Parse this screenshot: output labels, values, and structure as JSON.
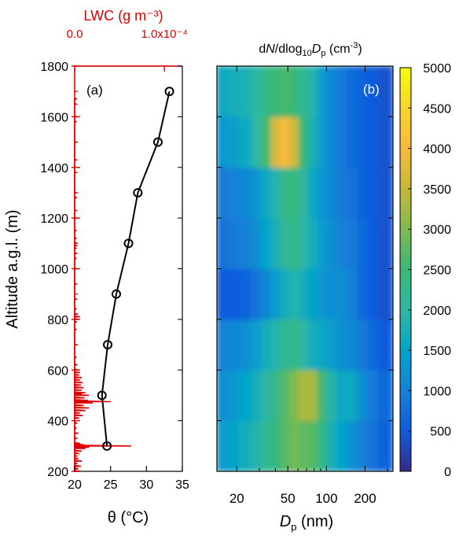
{
  "chart_data": [
    {
      "panel_label": "(a)",
      "type": "line",
      "title": "",
      "ylabel": "Altitude a.g.l. (m)",
      "ylim": [
        200,
        1800
      ],
      "yticks": [
        200,
        400,
        600,
        800,
        1000,
        1200,
        1400,
        1600,
        1800
      ],
      "xlabel_bottom": "θ (°C)",
      "xlim_bottom": [
        20,
        35
      ],
      "xticks_bottom": [
        20,
        25,
        30,
        35
      ],
      "xlabel_top": "LWC (g m⁻³)",
      "xlim_top": [
        0,
        0.00012
      ],
      "xticks_top": [
        {
          "value": 0,
          "label": "0.0"
        },
        {
          "value": 0.0001,
          "label": "1.0x10⁻⁴"
        }
      ],
      "top_axis_color": "#e00000",
      "series": [
        {
          "name": "",
          "color": "#000000",
          "marker": "open-circle",
          "x": [
            24.5,
            23.8,
            24.6,
            25.8,
            27.5,
            28.8,
            31.6,
            33.2
          ],
          "y": [
            300,
            500,
            700,
            900,
            1100,
            1300,
            1500,
            1700
          ]
        },
        {
          "name": "",
          "color": "#e00000",
          "axis": "top",
          "y_step_m": 5,
          "lwc": [
            [
              200,
              6e-06
            ],
            [
              210,
              4e-06
            ],
            [
              220,
              7e-06
            ],
            [
              230,
              3e-06
            ],
            [
              240,
              8e-06
            ],
            [
              250,
              4e-06
            ],
            [
              260,
              3e-06
            ],
            [
              270,
              5e-06
            ],
            [
              280,
              8e-06
            ],
            [
              290,
              1.2e-05
            ],
            [
              295,
              1.6e-05
            ],
            [
              300,
              6.3e-05
            ],
            [
              305,
              1e-05
            ],
            [
              310,
              6e-06
            ],
            [
              330,
              3e-06
            ],
            [
              350,
              4e-06
            ],
            [
              370,
              2e-06
            ],
            [
              390,
              3e-06
            ],
            [
              410,
              5e-06
            ],
            [
              420,
              9e-06
            ],
            [
              430,
              6e-06
            ],
            [
              440,
              1.2e-05
            ],
            [
              450,
              1.6e-05
            ],
            [
              460,
              1e-05
            ],
            [
              470,
              2e-05
            ],
            [
              475,
              4e-05
            ],
            [
              480,
              1.5e-05
            ],
            [
              490,
              1.1e-05
            ],
            [
              500,
              1.6e-05
            ],
            [
              505,
              8e-06
            ],
            [
              510,
              1.2e-05
            ],
            [
              520,
              8e-06
            ],
            [
              530,
              1e-05
            ],
            [
              540,
              7e-06
            ],
            [
              550,
              9e-06
            ],
            [
              560,
              6e-06
            ],
            [
              570,
              8e-06
            ],
            [
              580,
              5e-06
            ],
            [
              590,
              6e-06
            ],
            [
              600,
              4e-06
            ],
            [
              620,
              3e-06
            ],
            [
              650,
              2e-06
            ],
            [
              700,
              1.5e-06
            ],
            [
              760,
              2e-06
            ],
            [
              790,
              2.5e-06
            ],
            [
              800,
              3.5e-06
            ],
            [
              810,
              6e-06
            ],
            [
              820,
              3.5e-06
            ],
            [
              840,
              2e-06
            ],
            [
              880,
              1.5e-06
            ],
            [
              940,
              1.5e-06
            ],
            [
              1000,
              1.5e-06
            ],
            [
              1040,
              2e-06
            ],
            [
              1060,
              3e-06
            ],
            [
              1080,
              2e-06
            ],
            [
              1090,
              3e-06
            ],
            [
              1100,
              3e-06
            ],
            [
              1120,
              2e-06
            ],
            [
              1150,
              2e-06
            ],
            [
              1200,
              1.5e-06
            ],
            [
              1230,
              1.5e-06
            ],
            [
              1280,
              2.5e-06
            ],
            [
              1300,
              1.5e-06
            ],
            [
              1380,
              1.5e-06
            ],
            [
              1430,
              1.5e-06
            ],
            [
              1500,
              1.5e-06
            ],
            [
              1580,
              2e-06
            ],
            [
              1600,
              2.5e-06
            ],
            [
              1650,
              1.5e-06
            ],
            [
              1670,
              2.5e-06
            ]
          ]
        }
      ]
    },
    {
      "panel_label": "(b)",
      "type": "heatmap",
      "title": "dN/dlog₁₀Dp (cm⁻³)",
      "xlabel": "Dp (nm)",
      "xscale": "log",
      "xlim": [
        14,
        330
      ],
      "xticks": [
        {
          "value": 20,
          "label": "20"
        },
        {
          "value": 50,
          "label": "50"
        },
        {
          "value": 100,
          "label": "100"
        },
        {
          "value": 200,
          "label": "200"
        }
      ],
      "ylim": [
        200,
        1800
      ],
      "colorbar": {
        "range": [
          0,
          5000
        ],
        "ticks": [
          0,
          500,
          1000,
          1500,
          2000,
          2500,
          3000,
          3500,
          4000,
          4500,
          5000
        ]
      },
      "diameter_bins_nm": [
        14,
        17,
        21,
        26,
        31,
        37,
        44,
        52,
        61,
        72,
        85,
        100,
        120,
        145,
        175,
        210,
        255,
        330
      ],
      "altitude_bands_m": [
        {
          "bottom": 200,
          "top": 400,
          "values": [
            1400,
            1500,
            1700,
            1900,
            2200,
            2400,
            2700,
            2900,
            2800,
            2700,
            2300,
            1800,
            1500,
            1200,
            1000,
            800,
            600
          ]
        },
        {
          "bottom": 400,
          "top": 600,
          "values": [
            1200,
            1300,
            1500,
            1700,
            2000,
            2300,
            2700,
            3000,
            3300,
            3300,
            2600,
            1900,
            1600,
            1600,
            1200,
            900,
            700
          ]
        },
        {
          "bottom": 600,
          "top": 800,
          "values": [
            1000,
            1100,
            1200,
            1400,
            1700,
            1900,
            2200,
            2300,
            2000,
            1700,
            1600,
            1400,
            1200,
            1100,
            900,
            700,
            500
          ]
        },
        {
          "bottom": 800,
          "top": 1000,
          "values": [
            500,
            500,
            600,
            800,
            1100,
            1400,
            1700,
            1900,
            1700,
            1500,
            1300,
            1200,
            1200,
            1000,
            700,
            500,
            400
          ]
        },
        {
          "bottom": 1000,
          "top": 1200,
          "values": [
            800,
            900,
            1000,
            1200,
            1500,
            1800,
            2200,
            2300,
            2000,
            1700,
            1400,
            1200,
            1000,
            900,
            700,
            500,
            400
          ]
        },
        {
          "bottom": 1200,
          "top": 1400,
          "values": [
            900,
            1000,
            1100,
            1300,
            1600,
            1900,
            2300,
            2400,
            2100,
            1600,
            1300,
            1100,
            900,
            800,
            600,
            500,
            400
          ]
        },
        {
          "bottom": 1400,
          "top": 1600,
          "values": [
            1300,
            1400,
            1600,
            2000,
            2600,
            3700,
            4000,
            3600,
            2500,
            1800,
            1400,
            1100,
            900,
            700,
            600,
            500,
            400
          ]
        },
        {
          "bottom": 1600,
          "top": 1800,
          "values": [
            1600,
            1700,
            1800,
            2000,
            2300,
            2500,
            2600,
            2500,
            2200,
            1900,
            1400,
            1100,
            900,
            700,
            600,
            500,
            400
          ]
        }
      ]
    }
  ]
}
